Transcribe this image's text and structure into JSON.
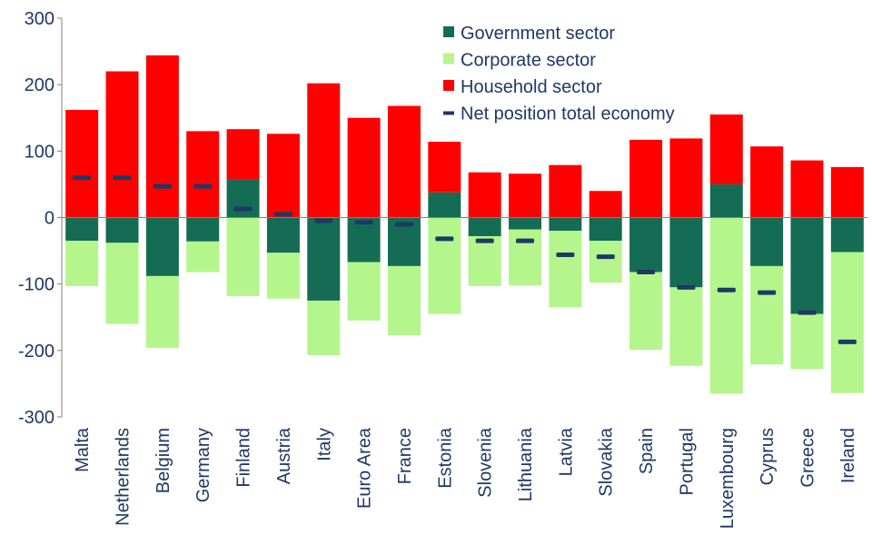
{
  "chart_data": {
    "type": "bar",
    "stacked": true,
    "categories": [
      "Malta",
      "Netherlands",
      "Belgium",
      "Germany",
      "Finland",
      "Austria",
      "Italy",
      "Euro Area",
      "France",
      "Estonia",
      "Slovenia",
      "Lithuania",
      "Latvia",
      "Slovakia",
      "Spain",
      "Portugal",
      "Luxembourg",
      "Cyprus",
      "Greece",
      "Ireland"
    ],
    "series": [
      {
        "name": "Government sector",
        "color": "#146c54",
        "values": [
          -35,
          -38,
          -88,
          -36,
          58,
          -53,
          -125,
          -67,
          -73,
          38,
          -28,
          -18,
          -20,
          -35,
          -82,
          -105,
          50,
          -73,
          -145,
          -52
        ]
      },
      {
        "name": "Corporate sector",
        "color": "#b4f58c",
        "values": [
          -68,
          -122,
          -108,
          -46,
          -118,
          -69,
          -82,
          -88,
          -104,
          -145,
          -75,
          -84,
          -115,
          -63,
          -117,
          -118,
          -265,
          -148,
          -83,
          -212
        ]
      },
      {
        "name": "Household sector",
        "color": "#ff0000",
        "values": [
          162,
          220,
          244,
          130,
          75,
          126,
          202,
          150,
          168,
          76,
          68,
          66,
          79,
          40,
          117,
          119,
          105,
          107,
          86,
          76
        ]
      }
    ],
    "net_position": {
      "name": "Net position total economy",
      "color": "#1f3864",
      "values": [
        60,
        60,
        47,
        47,
        13,
        5,
        -5,
        -7,
        -10,
        -32,
        -35,
        -35,
        -56,
        -59,
        -82,
        -105,
        -109,
        -113,
        -143,
        -187
      ]
    },
    "ylim": [
      -300,
      300
    ],
    "yticks": [
      -300,
      -200,
      -100,
      0,
      100,
      200,
      300
    ],
    "legend_position": "top-center",
    "grid": false
  }
}
